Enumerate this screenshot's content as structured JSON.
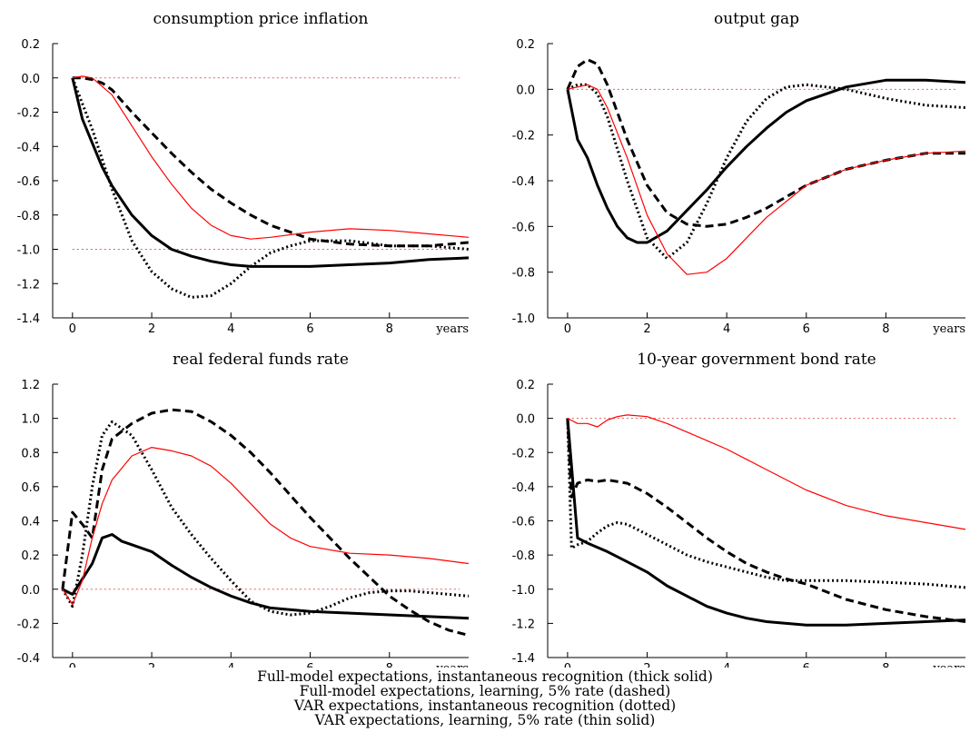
{
  "chart_data": [
    {
      "type": "line",
      "title": "consumption price inflation",
      "x_unit_label": "years",
      "xlim": [
        -0.5,
        10.0
      ],
      "ylim": [
        -1.4,
        0.2
      ],
      "xticks": [
        0,
        2,
        4,
        6,
        8
      ],
      "yticks": [
        -1.4,
        -1.2,
        -1.0,
        -0.8,
        -0.6,
        -0.4,
        -0.2,
        0.0,
        0.2
      ],
      "ytick_labels": [
        "-1.4",
        "-1.2",
        "-1.0",
        "-0.8",
        "-0.6",
        "-0.4",
        "-0.2",
        "0.0",
        "0.2"
      ],
      "reference_lines": [
        0.0,
        -1.0
      ],
      "series": [
        {
          "style": "thick-solid",
          "x": [
            0,
            0.25,
            0.5,
            0.75,
            1,
            1.5,
            2,
            2.5,
            3,
            3.5,
            4,
            4.5,
            5,
            6,
            7,
            8,
            9,
            10
          ],
          "y": [
            0,
            -0.24,
            -0.38,
            -0.52,
            -0.63,
            -0.8,
            -0.92,
            -1.0,
            -1.04,
            -1.07,
            -1.09,
            -1.1,
            -1.1,
            -1.1,
            -1.09,
            -1.08,
            -1.06,
            -1.05
          ]
        },
        {
          "style": "dashed",
          "x": [
            0,
            0.25,
            0.5,
            0.75,
            1,
            1.5,
            2,
            2.5,
            3,
            3.5,
            4,
            4.5,
            5,
            5.5,
            6,
            7,
            8,
            9,
            10
          ],
          "y": [
            0,
            0,
            -0.01,
            -0.03,
            -0.07,
            -0.2,
            -0.32,
            -0.44,
            -0.55,
            -0.65,
            -0.73,
            -0.8,
            -0.86,
            -0.9,
            -0.94,
            -0.97,
            -0.98,
            -0.98,
            -0.96
          ]
        },
        {
          "style": "dotted",
          "x": [
            0,
            0.5,
            1,
            1.5,
            2,
            2.5,
            3,
            3.5,
            4,
            4.5,
            5,
            5.5,
            6,
            7,
            8,
            9,
            10
          ],
          "y": [
            0,
            -0.3,
            -0.65,
            -0.95,
            -1.13,
            -1.23,
            -1.28,
            -1.27,
            -1.2,
            -1.1,
            -1.02,
            -0.98,
            -0.95,
            -0.95,
            -0.98,
            -0.98,
            -1.0
          ]
        },
        {
          "style": "thin-solid-red",
          "x": [
            0,
            0.25,
            0.5,
            1,
            1.5,
            2,
            2.5,
            3,
            3.5,
            4,
            4.5,
            5,
            6,
            7,
            8,
            9,
            10
          ],
          "y": [
            0,
            0.01,
            0,
            -0.1,
            -0.28,
            -0.46,
            -0.62,
            -0.76,
            -0.86,
            -0.92,
            -0.94,
            -0.93,
            -0.9,
            -0.88,
            -0.89,
            -0.91,
            -0.93
          ]
        }
      ]
    },
    {
      "type": "line",
      "title": "output gap",
      "x_unit_label": "years",
      "xlim": [
        -0.5,
        10.0
      ],
      "ylim": [
        -1.0,
        0.2
      ],
      "xticks": [
        0,
        2,
        4,
        6,
        8
      ],
      "yticks": [
        -1.0,
        -0.8,
        -0.6,
        -0.4,
        -0.2,
        0.0,
        0.2
      ],
      "ytick_labels": [
        "-1.0",
        "-0.8",
        "-0.6",
        "-0.4",
        "-0.2",
        "0.0",
        "0.2"
      ],
      "reference_lines": [
        0.0
      ],
      "series": [
        {
          "style": "thick-solid",
          "x": [
            0,
            0.25,
            0.5,
            0.75,
            1,
            1.25,
            1.5,
            1.75,
            2,
            2.5,
            3,
            3.5,
            4,
            4.5,
            5,
            5.5,
            6,
            7,
            8,
            9,
            10
          ],
          "y": [
            0,
            -0.22,
            -0.3,
            -0.42,
            -0.52,
            -0.6,
            -0.65,
            -0.67,
            -0.67,
            -0.62,
            -0.53,
            -0.44,
            -0.34,
            -0.25,
            -0.17,
            -0.1,
            -0.05,
            0.01,
            0.04,
            0.04,
            0.03
          ]
        },
        {
          "style": "dashed",
          "x": [
            0,
            0.25,
            0.5,
            0.75,
            1,
            1.5,
            2,
            2.5,
            3,
            3.5,
            4,
            4.5,
            5,
            6,
            7,
            8,
            9,
            10
          ],
          "y": [
            0,
            0.1,
            0.13,
            0.11,
            0.02,
            -0.22,
            -0.42,
            -0.54,
            -0.59,
            -0.6,
            -0.59,
            -0.56,
            -0.52,
            -0.42,
            -0.35,
            -0.31,
            -0.28,
            -0.28
          ]
        },
        {
          "style": "dotted",
          "x": [
            0,
            0.25,
            0.5,
            0.75,
            1,
            1.5,
            2,
            2.5,
            3,
            3.5,
            4,
            4.5,
            5,
            5.5,
            6,
            7,
            8,
            9,
            10
          ],
          "y": [
            0,
            0.02,
            0.02,
            -0.02,
            -0.12,
            -0.4,
            -0.65,
            -0.74,
            -0.67,
            -0.5,
            -0.3,
            -0.14,
            -0.04,
            0.01,
            0.02,
            0.0,
            -0.04,
            -0.07,
            -0.08
          ]
        },
        {
          "style": "thin-solid-red",
          "x": [
            0,
            0.25,
            0.5,
            0.75,
            1,
            1.5,
            2,
            2.5,
            3,
            3.5,
            4,
            4.5,
            5,
            6,
            7,
            8,
            9,
            10
          ],
          "y": [
            0,
            0.01,
            0.02,
            0,
            -0.08,
            -0.3,
            -0.55,
            -0.72,
            -0.81,
            -0.8,
            -0.74,
            -0.65,
            -0.56,
            -0.42,
            -0.35,
            -0.31,
            -0.28,
            -0.27
          ]
        }
      ]
    },
    {
      "type": "line",
      "title": "real federal funds rate",
      "x_unit_label": "years",
      "xlim": [
        -0.5,
        10.0
      ],
      "ylim": [
        -0.4,
        1.2
      ],
      "xticks": [
        0,
        2,
        4,
        6,
        8
      ],
      "yticks": [
        -0.4,
        -0.2,
        0.0,
        0.2,
        0.4,
        0.6,
        0.8,
        1.0,
        1.2
      ],
      "ytick_labels": [
        "-0.4",
        "-0.2",
        "0.0",
        "0.2",
        "0.4",
        "0.6",
        "0.8",
        "1.0",
        "1.2"
      ],
      "reference_lines": [
        0.0
      ],
      "series": [
        {
          "style": "thick-solid",
          "x": [
            -0.25,
            0,
            0.25,
            0.5,
            0.75,
            1,
            1.25,
            1.5,
            2,
            2.5,
            3,
            3.5,
            4,
            4.5,
            5,
            6,
            7,
            8,
            9,
            10
          ],
          "y": [
            0,
            -0.03,
            0.06,
            0.15,
            0.3,
            0.32,
            0.28,
            0.26,
            0.22,
            0.14,
            0.07,
            0.01,
            -0.04,
            -0.08,
            -0.11,
            -0.13,
            -0.14,
            -0.15,
            -0.16,
            -0.17
          ]
        },
        {
          "style": "dashed",
          "x": [
            -0.25,
            0,
            0.25,
            0.5,
            0.75,
            1,
            1.5,
            2,
            2.5,
            3,
            3.5,
            4,
            4.5,
            5,
            5.5,
            6,
            6.5,
            7,
            7.5,
            8,
            8.5,
            9,
            9.5,
            10
          ],
          "y": [
            0,
            0.45,
            0.38,
            0.3,
            0.7,
            0.88,
            0.97,
            1.03,
            1.05,
            1.04,
            0.98,
            0.9,
            0.8,
            0.68,
            0.55,
            0.42,
            0.3,
            0.18,
            0.07,
            -0.04,
            -0.12,
            -0.19,
            -0.24,
            -0.27
          ]
        },
        {
          "style": "dotted",
          "x": [
            -0.25,
            0,
            0.25,
            0.5,
            0.75,
            1,
            1.5,
            2,
            2.5,
            3,
            3.5,
            4,
            4.5,
            5,
            5.5,
            6,
            6.5,
            7,
            7.5,
            8,
            8.5,
            9,
            9.5,
            10
          ],
          "y": [
            0,
            -0.1,
            0.2,
            0.6,
            0.9,
            0.98,
            0.9,
            0.7,
            0.48,
            0.32,
            0.18,
            0.05,
            -0.07,
            -0.13,
            -0.15,
            -0.14,
            -0.1,
            -0.05,
            -0.02,
            -0.01,
            -0.01,
            -0.02,
            -0.03,
            -0.04
          ]
        },
        {
          "style": "thin-solid-red",
          "x": [
            -0.25,
            0,
            0.25,
            0.5,
            0.75,
            1,
            1.5,
            2,
            2.5,
            3,
            3.5,
            4,
            4.5,
            5,
            5.5,
            6,
            7,
            8,
            9,
            10
          ],
          "y": [
            0,
            -0.09,
            0.05,
            0.3,
            0.5,
            0.64,
            0.78,
            0.83,
            0.81,
            0.78,
            0.72,
            0.62,
            0.5,
            0.38,
            0.3,
            0.25,
            0.21,
            0.2,
            0.18,
            0.15
          ]
        }
      ]
    },
    {
      "type": "line",
      "title": "10-year government bond rate",
      "x_unit_label": "years",
      "xlim": [
        -0.5,
        10.0
      ],
      "ylim": [
        -1.4,
        0.2
      ],
      "xticks": [
        0,
        2,
        4,
        6,
        8
      ],
      "yticks": [
        -1.4,
        -1.2,
        -1.0,
        -0.8,
        -0.6,
        -0.4,
        -0.2,
        0.0,
        0.2
      ],
      "ytick_labels": [
        "-1.4",
        "-1.2",
        "-1.0",
        "-0.8",
        "-0.6",
        "-0.4",
        "-0.2",
        "0.0",
        "0.2"
      ],
      "reference_lines": [
        0.0
      ],
      "series": [
        {
          "style": "thick-solid",
          "x": [
            0,
            0.25,
            0.5,
            1,
            1.5,
            2,
            2.5,
            3,
            3.5,
            4,
            4.5,
            5,
            5.5,
            6,
            6.5,
            7,
            8,
            9,
            10
          ],
          "y": [
            0,
            -0.7,
            -0.73,
            -0.78,
            -0.84,
            -0.9,
            -0.98,
            -1.04,
            -1.1,
            -1.14,
            -1.17,
            -1.19,
            -1.2,
            -1.21,
            -1.21,
            -1.21,
            -1.2,
            -1.19,
            -1.18
          ]
        },
        {
          "style": "dashed",
          "x": [
            0,
            0.1,
            0.25,
            0.5,
            0.75,
            1,
            1.5,
            2,
            2.5,
            3,
            3.5,
            4,
            4.5,
            5,
            5.5,
            6,
            7,
            8,
            9,
            10
          ],
          "y": [
            0,
            -0.46,
            -0.38,
            -0.36,
            -0.37,
            -0.36,
            -0.38,
            -0.44,
            -0.52,
            -0.61,
            -0.7,
            -0.78,
            -0.85,
            -0.9,
            -0.94,
            -0.97,
            -1.06,
            -1.12,
            -1.16,
            -1.19
          ]
        },
        {
          "style": "dotted",
          "x": [
            0,
            0.1,
            0.25,
            0.5,
            0.75,
            1,
            1.25,
            1.5,
            2,
            2.5,
            3,
            3.5,
            4,
            4.5,
            5,
            5.5,
            6,
            7,
            8,
            9,
            10
          ],
          "y": [
            0,
            -0.76,
            -0.74,
            -0.72,
            -0.67,
            -0.63,
            -0.61,
            -0.62,
            -0.68,
            -0.74,
            -0.8,
            -0.84,
            -0.87,
            -0.9,
            -0.93,
            -0.95,
            -0.95,
            -0.95,
            -0.96,
            -0.97,
            -0.99
          ]
        },
        {
          "style": "thin-solid-red",
          "x": [
            0,
            0.25,
            0.5,
            0.75,
            1,
            1.25,
            1.5,
            2,
            2.5,
            3,
            3.5,
            4,
            4.5,
            5,
            5.5,
            6,
            7,
            8,
            9,
            10
          ],
          "y": [
            0,
            -0.03,
            -0.03,
            -0.05,
            -0.01,
            0.01,
            0.02,
            0.01,
            -0.03,
            -0.08,
            -0.13,
            -0.18,
            -0.24,
            -0.3,
            -0.36,
            -0.42,
            -0.51,
            -0.57,
            -0.61,
            -0.65
          ]
        }
      ]
    }
  ],
  "legend": {
    "lines": [
      "Full-model expectations, instantaneous recognition (thick solid)",
      "Full-model expectations, learning, 5% rate (dashed)",
      "VAR expectations, instantaneous recognition (dotted)",
      "VAR expectations, learning, 5% rate (thin solid)"
    ]
  },
  "colors": {
    "axes": "#000000",
    "series_main": "#000000",
    "series_red": "#ff0000",
    "reference_line": "#e06060"
  }
}
